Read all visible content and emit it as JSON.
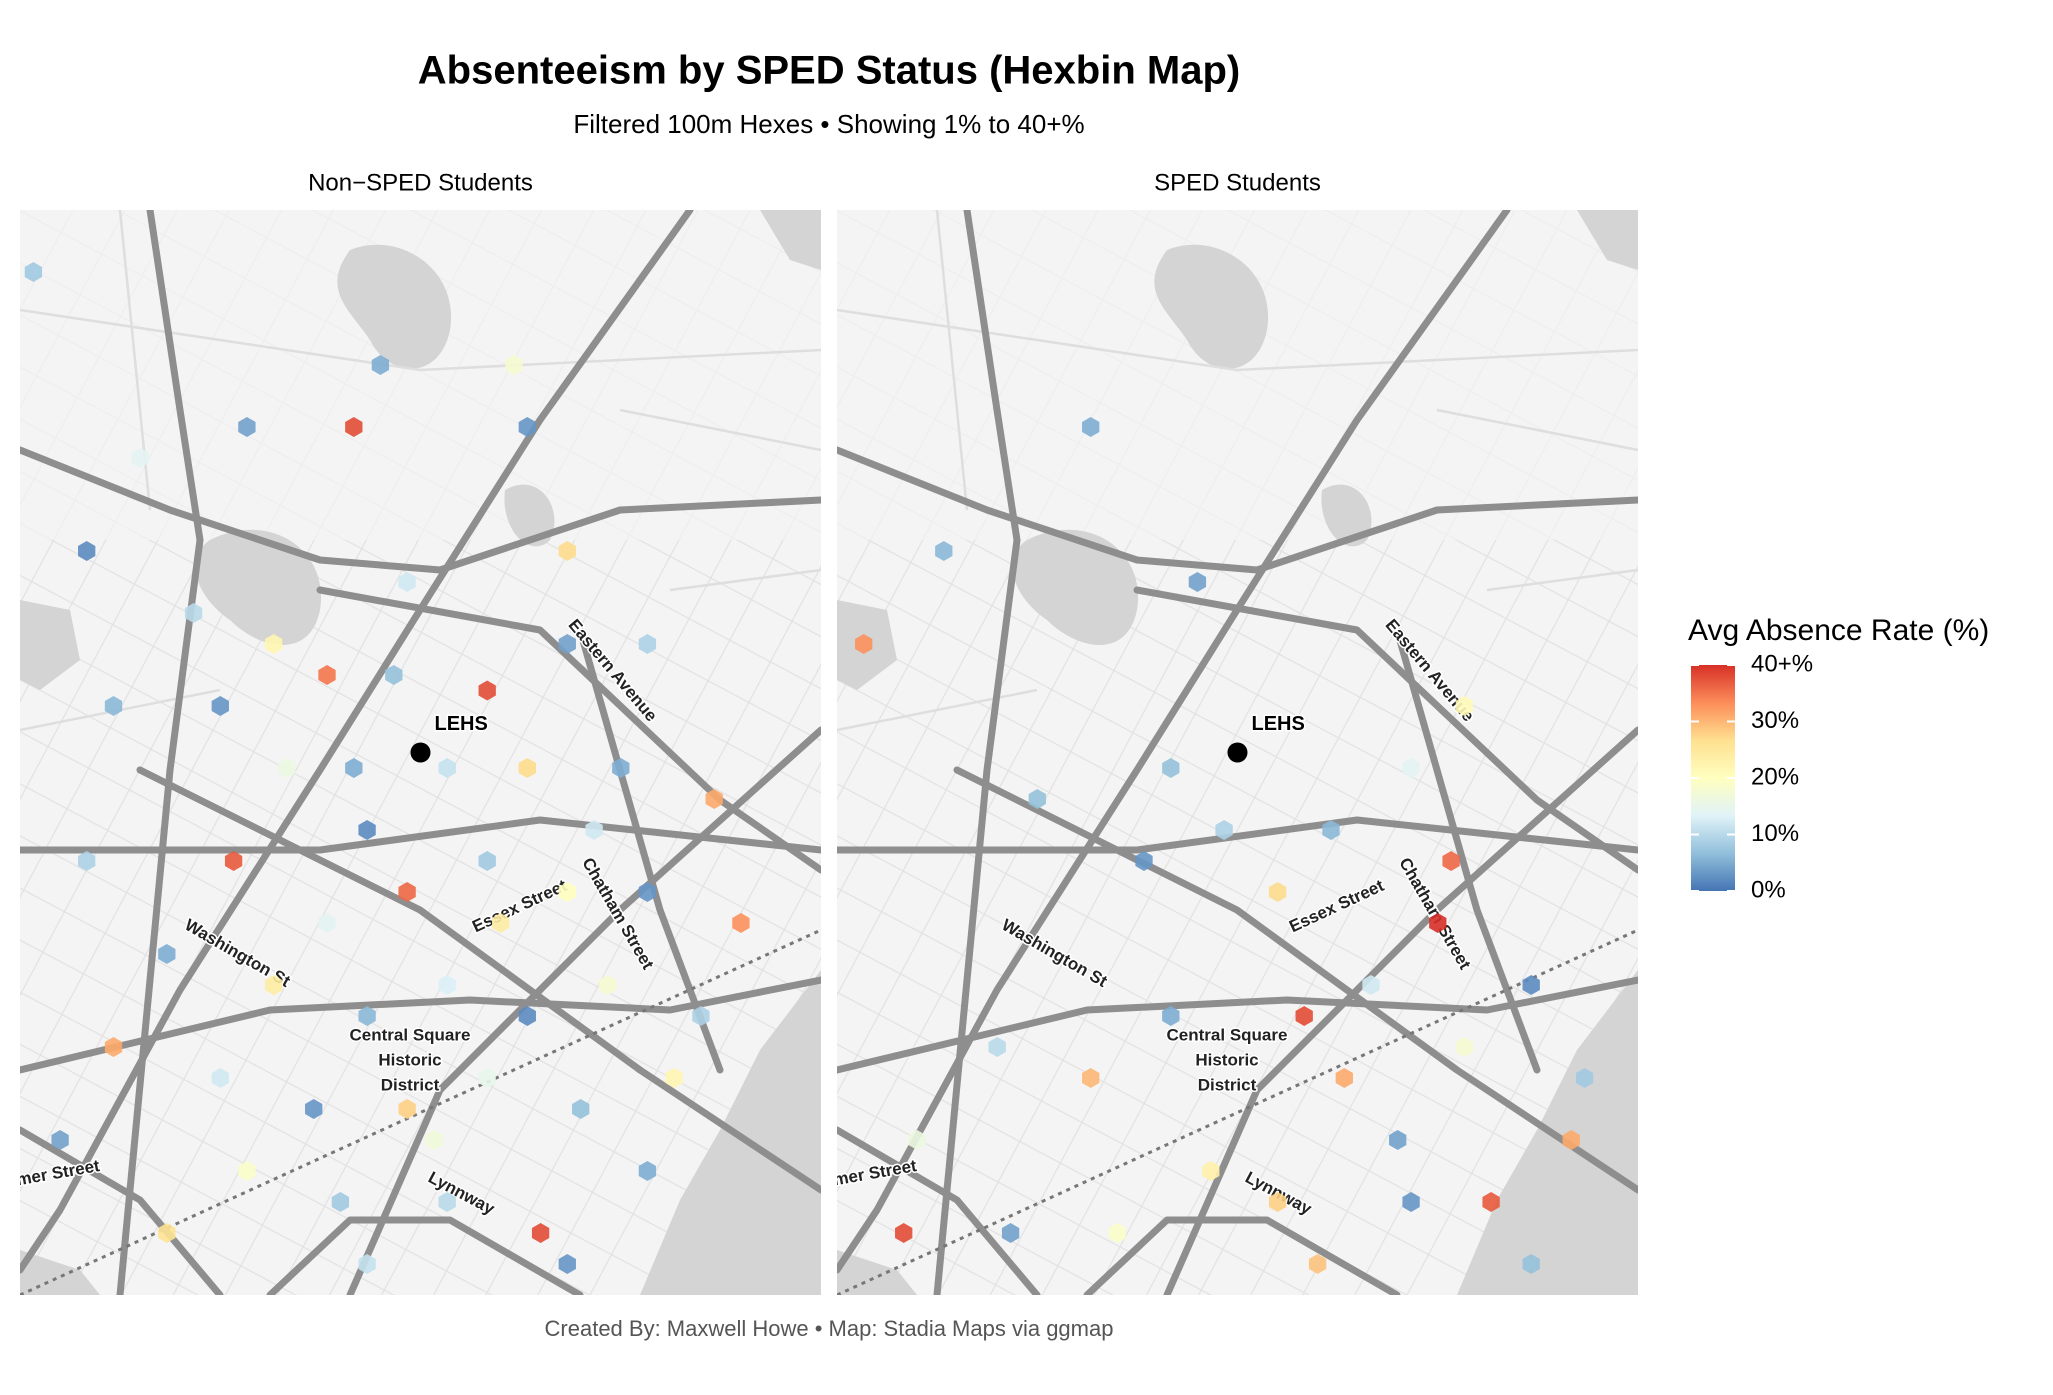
{
  "chart_data": {
    "type": "hexbin_map",
    "title": "Absenteeism by SPED Status (Hexbin Map)",
    "subtitle": "Filtered 100m Hexes • Showing 1% to 40+%",
    "caption": "Created By: Maxwell Howe • Map: Stadia Maps via ggmap",
    "xlim": [
      -70.985,
      -70.925
    ],
    "ylim": [
      42.455,
      42.49
    ],
    "landmark": {
      "label": "LEHS",
      "lon": -70.955,
      "lat": 42.4725
    },
    "street_labels": {
      "eastern_avenue": "Eastern Avenue",
      "washington_street": "Washington St",
      "essex_street": "Essex Street",
      "chatham_street": "Chatham Street",
      "lynnway": "Lynnway",
      "summer_street": "Summer Street",
      "central_square": [
        "Central Square",
        "Historic",
        "District"
      ]
    },
    "legend": {
      "title": "Avg Absence Rate (%)",
      "limits": [
        0,
        40
      ],
      "ticks": [
        {
          "value": 0,
          "label": "0%"
        },
        {
          "value": 10,
          "label": "10%"
        },
        {
          "value": 20,
          "label": "20%"
        },
        {
          "value": 30,
          "label": "30%"
        },
        {
          "value": 40,
          "label": "40+%"
        }
      ],
      "colors": [
        "#4575b4",
        "#91bfdb",
        "#e0f3f8",
        "#ffffbf",
        "#fee090",
        "#fc8d59",
        "#d73027"
      ]
    },
    "series": [
      {
        "name": "Non−SPED Students",
        "lon": [
          -70.984,
          -70.976,
          -70.968,
          -70.96,
          -70.958,
          -70.948,
          -70.947,
          -70.98,
          -70.972,
          -70.966,
          -70.956,
          -70.944,
          -70.978,
          -70.97,
          -70.962,
          -70.957,
          -70.95,
          -70.944,
          -70.938,
          -70.965,
          -70.959,
          -70.953,
          -70.947,
          -70.94,
          -70.933,
          -70.969,
          -70.962,
          -70.956,
          -70.95,
          -70.944,
          -70.938,
          -70.931,
          -70.974,
          -70.966,
          -70.959,
          -70.953,
          -70.947,
          -70.941,
          -70.934,
          -70.978,
          -70.97,
          -70.963,
          -70.956,
          -70.95,
          -70.943,
          -70.936,
          -70.982,
          -70.968,
          -70.961,
          -70.953,
          -70.946,
          -70.938,
          -70.944,
          -70.974,
          -70.959,
          -70.98,
          -70.954,
          -70.949,
          -70.96,
          -70.942
        ],
        "lat": [
          42.488,
          42.482,
          42.483,
          42.483,
          42.485,
          42.485,
          42.483,
          42.479,
          42.477,
          42.476,
          42.478,
          42.479,
          42.474,
          42.474,
          42.475,
          42.475,
          42.4745,
          42.476,
          42.476,
          42.472,
          42.47,
          42.472,
          42.472,
          42.472,
          42.471,
          42.469,
          42.467,
          42.468,
          42.469,
          42.468,
          42.468,
          42.467,
          42.466,
          42.465,
          42.464,
          42.465,
          42.464,
          42.465,
          42.464,
          42.463,
          42.462,
          42.461,
          42.461,
          42.462,
          42.461,
          42.462,
          42.46,
          42.459,
          42.458,
          42.458,
          42.457,
          42.459,
          42.456,
          42.457,
          42.456,
          42.469,
          42.46,
          42.467,
          42.472,
          42.47
        ],
        "values": [
          8,
          14,
          4,
          38,
          5,
          18,
          3,
          2,
          10,
          22,
          12,
          27,
          6,
          3,
          35,
          7,
          38,
          4,
          9,
          16,
          2,
          11,
          27,
          5,
          31,
          37,
          14,
          36,
          8,
          20,
          3,
          33,
          5,
          24,
          6,
          13,
          2,
          18,
          9,
          31,
          12,
          3,
          28,
          15,
          7,
          22,
          4,
          19,
          8,
          10,
          38,
          5,
          3,
          26,
          11,
          9,
          17,
          24,
          5,
          12
        ]
      },
      {
        "name": "SPED Students",
        "lon": [
          -70.983,
          -70.977,
          -70.966,
          -70.958,
          -70.97,
          -70.962,
          -70.956,
          -70.952,
          -70.948,
          -70.942,
          -70.938,
          -70.939,
          -70.945,
          -70.95,
          -70.947,
          -70.943,
          -70.938,
          -70.933,
          -70.929,
          -70.96,
          -70.966,
          -70.973,
          -70.979,
          -70.957,
          -70.952,
          -70.942,
          -70.936,
          -70.933,
          -70.949,
          -70.972,
          -70.98,
          -70.964,
          -70.96,
          -70.94,
          -70.93
        ],
        "lat": [
          42.476,
          42.479,
          42.483,
          42.478,
          42.471,
          42.469,
          42.47,
          42.468,
          42.47,
          42.472,
          42.474,
          42.469,
          42.465,
          42.464,
          42.462,
          42.46,
          42.463,
          42.465,
          42.462,
          42.464,
          42.462,
          42.463,
          42.46,
          42.459,
          42.458,
          42.458,
          42.458,
          42.456,
          42.456,
          42.457,
          42.457,
          42.457,
          42.472,
          42.467,
          42.46
        ],
        "values": [
          33,
          6,
          5,
          4,
          7,
          3,
          9,
          27,
          6,
          14,
          21,
          36,
          12,
          38,
          31,
          4,
          18,
          2,
          8,
          5,
          30,
          10,
          16,
          23,
          28,
          3,
          37,
          7,
          29,
          4,
          38,
          19,
          7,
          40,
          31
        ]
      }
    ]
  }
}
